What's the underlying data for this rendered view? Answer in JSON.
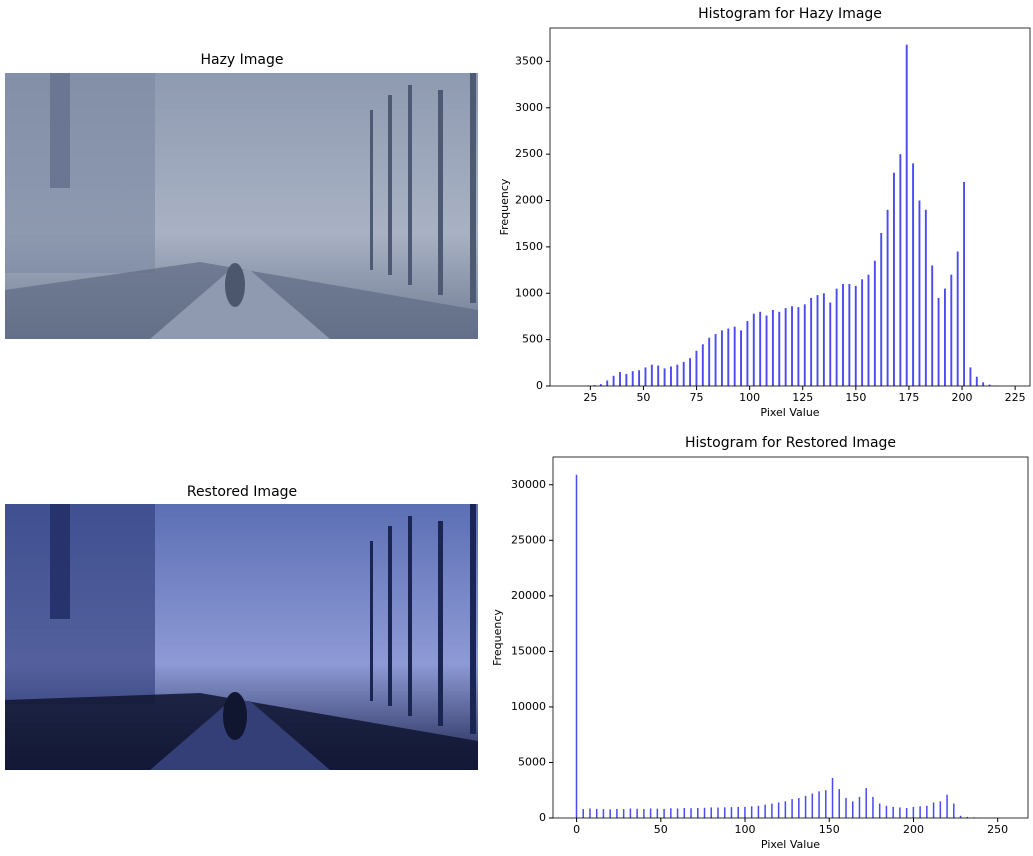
{
  "chart_data": [
    {
      "type": "image",
      "title": "Hazy Image"
    },
    {
      "type": "histogram",
      "title": "Histogram for Hazy Image",
      "x_label": "Pixel Value",
      "y_label": "Frequency",
      "color": "#4b4bf0",
      "x": [
        24,
        27,
        30,
        33,
        36,
        39,
        42,
        45,
        48,
        51,
        54,
        57,
        60,
        63,
        66,
        69,
        72,
        75,
        78,
        81,
        84,
        87,
        90,
        93,
        96,
        99,
        102,
        105,
        108,
        111,
        114,
        117,
        120,
        123,
        126,
        129,
        132,
        135,
        138,
        141,
        144,
        147,
        150,
        153,
        156,
        159,
        162,
        165,
        168,
        171,
        174,
        177,
        180,
        183,
        186,
        189,
        192,
        195,
        198,
        201,
        204,
        207,
        210,
        213,
        216
      ],
      "values": [
        5,
        10,
        20,
        60,
        110,
        150,
        130,
        160,
        170,
        200,
        230,
        220,
        190,
        210,
        230,
        260,
        300,
        380,
        450,
        520,
        560,
        600,
        620,
        640,
        600,
        700,
        780,
        800,
        760,
        820,
        800,
        840,
        860,
        850,
        880,
        950,
        980,
        1000,
        900,
        1050,
        1100,
        1100,
        1080,
        1150,
        1200,
        1350,
        1650,
        1900,
        2300,
        2500,
        3680,
        2400,
        2000,
        1900,
        1300,
        950,
        1050,
        1200,
        1450,
        2200,
        200,
        100,
        40,
        15,
        5
      ],
      "xlim": [
        6,
        232
      ],
      "ylim": [
        0,
        3860
      ],
      "xticks": [
        25,
        50,
        75,
        100,
        125,
        150,
        175,
        200,
        225
      ],
      "yticks": [
        0,
        500,
        1000,
        1500,
        2000,
        2500,
        3000,
        3500
      ]
    },
    {
      "type": "image",
      "title": "Restored Image"
    },
    {
      "type": "histogram",
      "title": "Histogram for Restored Image",
      "x_label": "Pixel Value",
      "y_label": "Frequency",
      "color": "#4b4bf0",
      "x": [
        0,
        4,
        8,
        12,
        16,
        20,
        24,
        28,
        32,
        36,
        40,
        44,
        48,
        52,
        56,
        60,
        64,
        68,
        72,
        76,
        80,
        84,
        88,
        92,
        96,
        100,
        104,
        108,
        112,
        116,
        120,
        124,
        128,
        132,
        136,
        140,
        144,
        148,
        152,
        156,
        160,
        164,
        168,
        172,
        176,
        180,
        184,
        188,
        192,
        196,
        200,
        204,
        208,
        212,
        216,
        220,
        224,
        228,
        232,
        236,
        240,
        244,
        248,
        252
      ],
      "values": [
        30900,
        800,
        850,
        820,
        800,
        780,
        820,
        800,
        850,
        830,
        800,
        860,
        840,
        820,
        880,
        860,
        900,
        880,
        900,
        920,
        950,
        940,
        960,
        980,
        1000,
        1000,
        1050,
        1100,
        1200,
        1300,
        1400,
        1500,
        1700,
        1800,
        2000,
        2200,
        2400,
        2500,
        3600,
        2600,
        1800,
        1500,
        1900,
        2700,
        1900,
        1300,
        1100,
        1000,
        950,
        900,
        1000,
        1050,
        1100,
        1400,
        1500,
        2100,
        1300,
        200,
        100,
        60,
        40,
        20,
        10,
        5
      ],
      "xlim": [
        -14,
        268
      ],
      "ylim": [
        0,
        32500
      ],
      "xticks": [
        0,
        50,
        100,
        150,
        200,
        250
      ],
      "yticks": [
        0,
        5000,
        10000,
        15000,
        20000,
        25000,
        30000
      ]
    }
  ]
}
